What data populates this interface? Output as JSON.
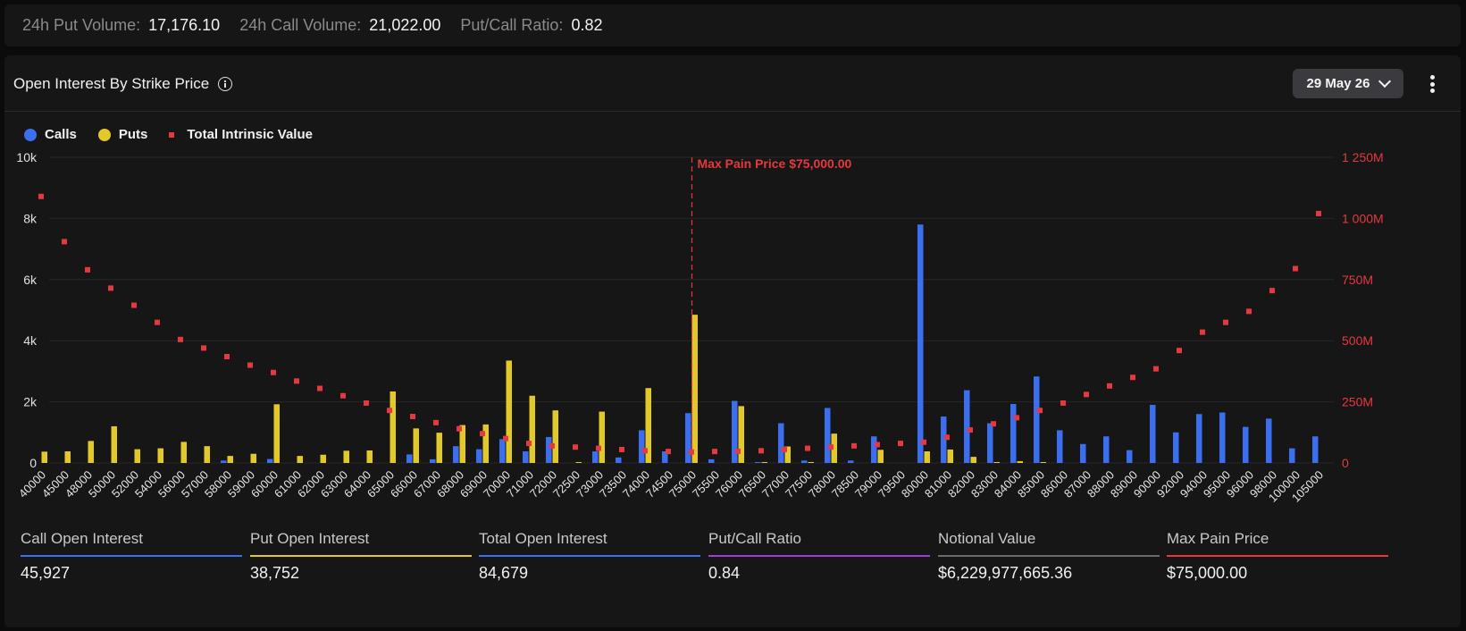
{
  "header_stats": {
    "put_volume_label": "24h Put Volume:",
    "put_volume_value": "17,176.10",
    "call_volume_label": "24h Call Volume:",
    "call_volume_value": "21,022.00",
    "pc_ratio_label": "Put/Call Ratio:",
    "pc_ratio_value": "0.82"
  },
  "panel": {
    "title": "Open Interest By Strike Price",
    "date_selected": "29 May 26"
  },
  "legend": {
    "calls": "Calls",
    "puts": "Puts",
    "intrinsic": "Total Intrinsic Value"
  },
  "colors": {
    "calls": "#3b6ff0",
    "puts": "#e3c82c",
    "intrinsic": "#e5393f",
    "max_pain": "#e5393f",
    "call_oi_line": "#3b6ff0",
    "put_oi_line": "#e3c82c",
    "total_oi_line": "#3b6ff0",
    "pc_ratio_line": "#9b3de0",
    "notional_line": "#6a6a6a",
    "max_pain_line": "#e5393f"
  },
  "chart_data": {
    "type": "bar",
    "categories": [
      "40000",
      "45000",
      "48000",
      "50000",
      "52000",
      "54000",
      "56000",
      "57000",
      "58000",
      "59000",
      "60000",
      "61000",
      "62000",
      "63000",
      "64000",
      "65000",
      "66000",
      "67000",
      "68000",
      "69000",
      "70000",
      "71000",
      "72000",
      "72500",
      "73000",
      "73500",
      "74000",
      "74500",
      "75000",
      "75500",
      "76000",
      "76500",
      "77000",
      "77500",
      "78000",
      "78500",
      "79000",
      "79500",
      "80000",
      "81000",
      "82000",
      "83000",
      "84000",
      "85000",
      "86000",
      "87000",
      "88000",
      "89000",
      "90000",
      "92000",
      "94000",
      "95000",
      "96000",
      "98000",
      "100000",
      "105000"
    ],
    "series": [
      {
        "name": "Calls",
        "axis": "left",
        "values": [
          0,
          0,
          0,
          0,
          0,
          0,
          0,
          0,
          80,
          0,
          130,
          0,
          0,
          0,
          0,
          0,
          280,
          120,
          550,
          450,
          780,
          380,
          850,
          0,
          380,
          180,
          1070,
          380,
          1630,
          120,
          2030,
          30,
          1300,
          80,
          1800,
          80,
          870,
          0,
          7800,
          1520,
          2380,
          1300,
          1930,
          2830,
          1070,
          620,
          870,
          420,
          1900,
          1000,
          1600,
          1650,
          1180,
          1450,
          480,
          870
        ]
      },
      {
        "name": "Puts",
        "axis": "left",
        "values": [
          370,
          380,
          720,
          1200,
          450,
          480,
          690,
          550,
          230,
          300,
          1920,
          230,
          270,
          400,
          410,
          2340,
          1130,
          990,
          1240,
          1260,
          3350,
          2200,
          1720,
          30,
          1680,
          0,
          2450,
          0,
          4850,
          0,
          1860,
          30,
          540,
          30,
          960,
          0,
          430,
          0,
          380,
          440,
          200,
          30,
          60,
          30,
          0,
          0,
          0,
          0,
          0,
          0,
          0,
          0,
          0,
          0,
          0,
          0
        ]
      },
      {
        "name": "Total Intrinsic Value",
        "axis": "right",
        "type": "scatter",
        "values": [
          1090000000,
          905000000,
          790000000,
          715000000,
          645000000,
          575000000,
          505000000,
          470000000,
          435000000,
          400000000,
          370000000,
          335000000,
          305000000,
          275000000,
          245000000,
          215000000,
          190000000,
          165000000,
          140000000,
          120000000,
          100000000,
          80000000,
          70000000,
          65000000,
          60000000,
          55000000,
          50000000,
          47000000,
          45000000,
          47000000,
          48000000,
          50000000,
          55000000,
          60000000,
          65000000,
          70000000,
          75000000,
          80000000,
          85000000,
          105000000,
          135000000,
          160000000,
          185000000,
          215000000,
          245000000,
          280000000,
          315000000,
          350000000,
          385000000,
          460000000,
          535000000,
          575000000,
          620000000,
          705000000,
          795000000,
          1020000000
        ]
      }
    ],
    "y_left": {
      "ticks": [
        "0",
        "2k",
        "4k",
        "6k",
        "8k",
        "10k"
      ],
      "ylim": [
        0,
        10000
      ]
    },
    "y_right": {
      "ticks": [
        "0",
        "250M",
        "500M",
        "750M",
        "1 000M",
        "1 250M"
      ],
      "ylim": [
        0,
        1250000000
      ]
    },
    "max_pain": {
      "label": "Max Pain Price $75,000.00",
      "strike": "75000"
    },
    "grid": true,
    "legend_position": "top-left"
  },
  "summary": [
    {
      "label": "Call Open Interest",
      "value": "45,927",
      "color_key": "call_oi_line"
    },
    {
      "label": "Put Open Interest",
      "value": "38,752",
      "color_key": "put_oi_line"
    },
    {
      "label": "Total Open Interest",
      "value": "84,679",
      "color_key": "total_oi_line"
    },
    {
      "label": "Put/Call Ratio",
      "value": "0.84",
      "color_key": "pc_ratio_line"
    },
    {
      "label": "Notional Value",
      "value": "$6,229,977,665.36",
      "color_key": "notional_line"
    },
    {
      "label": "Max Pain Price",
      "value": "$75,000.00",
      "color_key": "max_pain_line"
    }
  ]
}
